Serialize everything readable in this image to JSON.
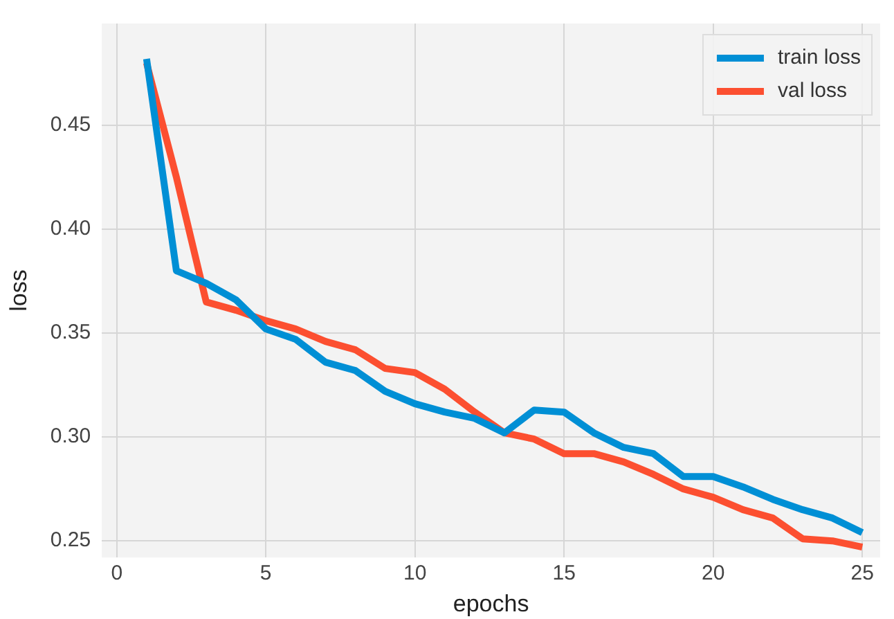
{
  "chart_data": {
    "type": "line",
    "xlabel": "epochs",
    "ylabel": "loss",
    "x": [
      1,
      2,
      3,
      4,
      5,
      6,
      7,
      8,
      9,
      10,
      11,
      12,
      13,
      14,
      15,
      16,
      17,
      18,
      19,
      20,
      21,
      22,
      23,
      24,
      25
    ],
    "series": [
      {
        "name": "train loss",
        "color": "#008fd5",
        "values": [
          0.482,
          0.38,
          0.374,
          0.366,
          0.352,
          0.347,
          0.336,
          0.332,
          0.322,
          0.316,
          0.312,
          0.309,
          0.302,
          0.313,
          0.312,
          0.302,
          0.295,
          0.292,
          0.281,
          0.281,
          0.276,
          0.27,
          0.265,
          0.261,
          0.254
        ]
      },
      {
        "name": "val loss",
        "color": "#fc4f30",
        "values": [
          0.48,
          0.425,
          0.365,
          0.361,
          0.356,
          0.352,
          0.346,
          0.342,
          0.333,
          0.331,
          0.323,
          0.312,
          0.302,
          0.299,
          0.292,
          0.292,
          0.288,
          0.282,
          0.275,
          0.271,
          0.265,
          0.261,
          0.251,
          0.25,
          0.247
        ]
      }
    ],
    "xlim": [
      -0.5,
      25.6
    ],
    "ylim": [
      0.242,
      0.499
    ],
    "xticks": [
      0,
      5,
      10,
      15,
      20,
      25
    ],
    "yticks": [
      0.25,
      {
        "value": 0.3,
        "label": "0.30"
      },
      0.35,
      {
        "value": 0.4,
        "label": "0.40"
      },
      0.45
    ],
    "grid": true,
    "legend": "top right",
    "marker": "none",
    "line_style": "solid"
  }
}
